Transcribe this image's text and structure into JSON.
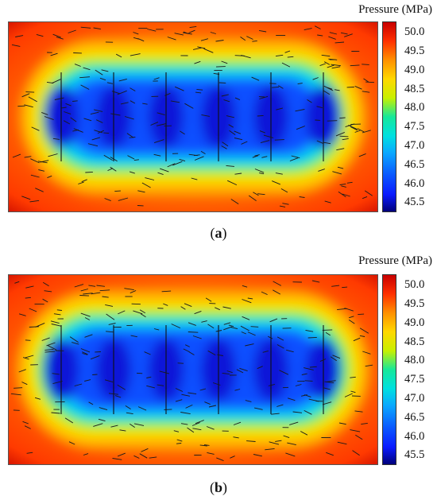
{
  "chart_data": [
    {
      "type": "heatmap",
      "panel_label": "a",
      "colorbar_title": "Pressure (MPa)",
      "colorbar_ticks": [
        "50.0",
        "49.5",
        "49.0",
        "48.5",
        "48.0",
        "47.5",
        "47.0",
        "46.5",
        "46.0",
        "45.5"
      ],
      "colorbar_range": [
        45.3,
        50.3
      ],
      "fracture_count": 6,
      "colors": {
        "low": "#00007a",
        "high": "#c80000"
      }
    },
    {
      "type": "heatmap",
      "panel_label": "b",
      "colorbar_title": "Pressure (MPa)",
      "colorbar_ticks": [
        "50.0",
        "49.5",
        "49.0",
        "48.5",
        "48.0",
        "47.5",
        "47.0",
        "46.5",
        "46.0",
        "45.5"
      ],
      "colorbar_range": [
        45.3,
        50.3
      ],
      "fracture_count": 6,
      "colors": {
        "low": "#00007a",
        "high": "#c80000"
      }
    }
  ]
}
